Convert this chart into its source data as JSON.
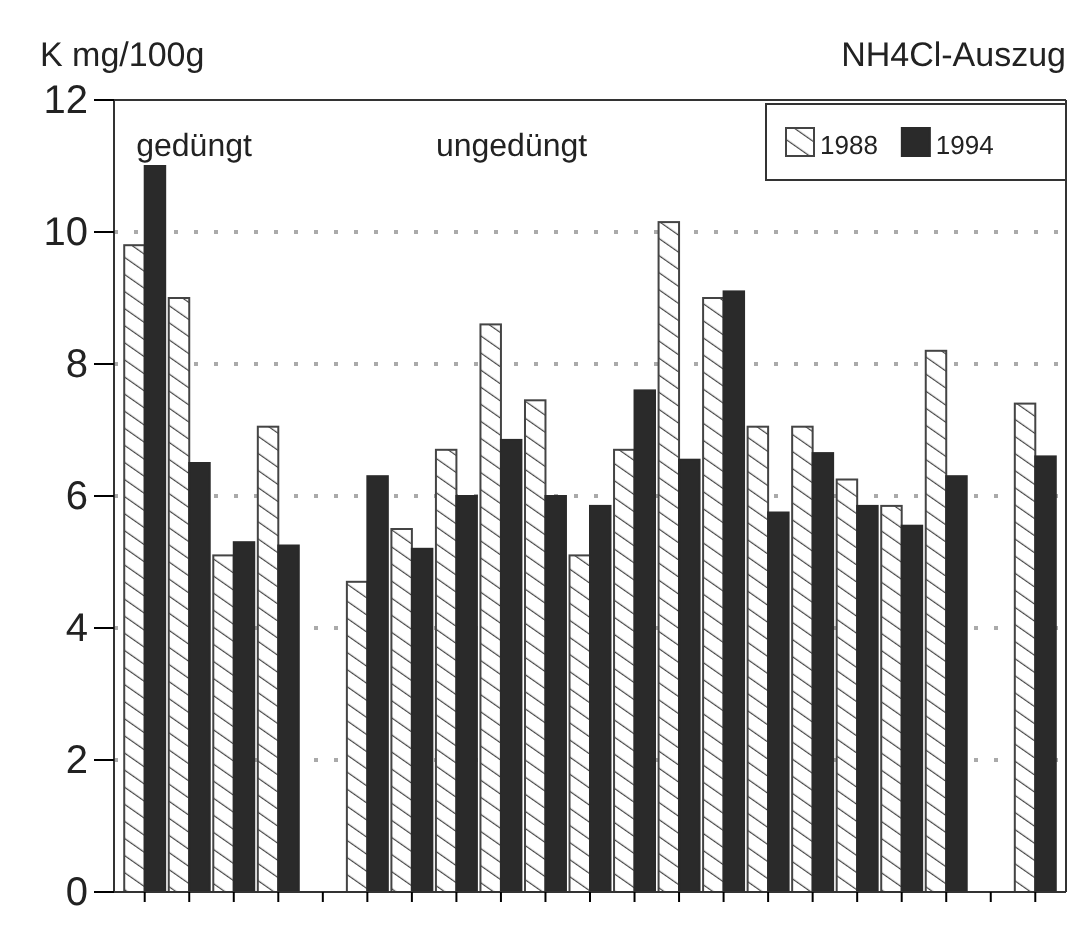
{
  "chart_data": {
    "type": "bar",
    "title": "NH4Cl-Auszug",
    "ylabel": "K mg/100g",
    "annotations": [
      "gedüngt",
      "ungedüngt"
    ],
    "categories": [
      null,
      null,
      null,
      null,
      null,
      null,
      null,
      null,
      null,
      null,
      null,
      null,
      null,
      null,
      null,
      null,
      null,
      null,
      null,
      null,
      null
    ],
    "series": [
      {
        "name": "1988",
        "color": "#444444",
        "values": [
          9.8,
          9.0,
          5.1,
          7.05,
          null,
          4.7,
          5.5,
          6.7,
          8.6,
          7.45,
          5.1,
          6.7,
          10.15,
          9.0,
          7.05,
          7.05,
          6.25,
          5.85,
          8.2,
          null,
          7.4
        ]
      },
      {
        "name": "1994",
        "color": "#2a2a2a",
        "values": [
          11.0,
          6.5,
          5.3,
          5.25,
          null,
          6.3,
          5.2,
          6.0,
          6.85,
          6.0,
          5.85,
          7.6,
          6.55,
          9.1,
          5.75,
          6.65,
          5.85,
          5.55,
          6.3,
          null,
          6.6
        ]
      }
    ],
    "ylim": [
      0,
      12
    ],
    "yticks": [
      0,
      2,
      4,
      6,
      8,
      10,
      12
    ],
    "grid": "y",
    "legend": "top right"
  }
}
